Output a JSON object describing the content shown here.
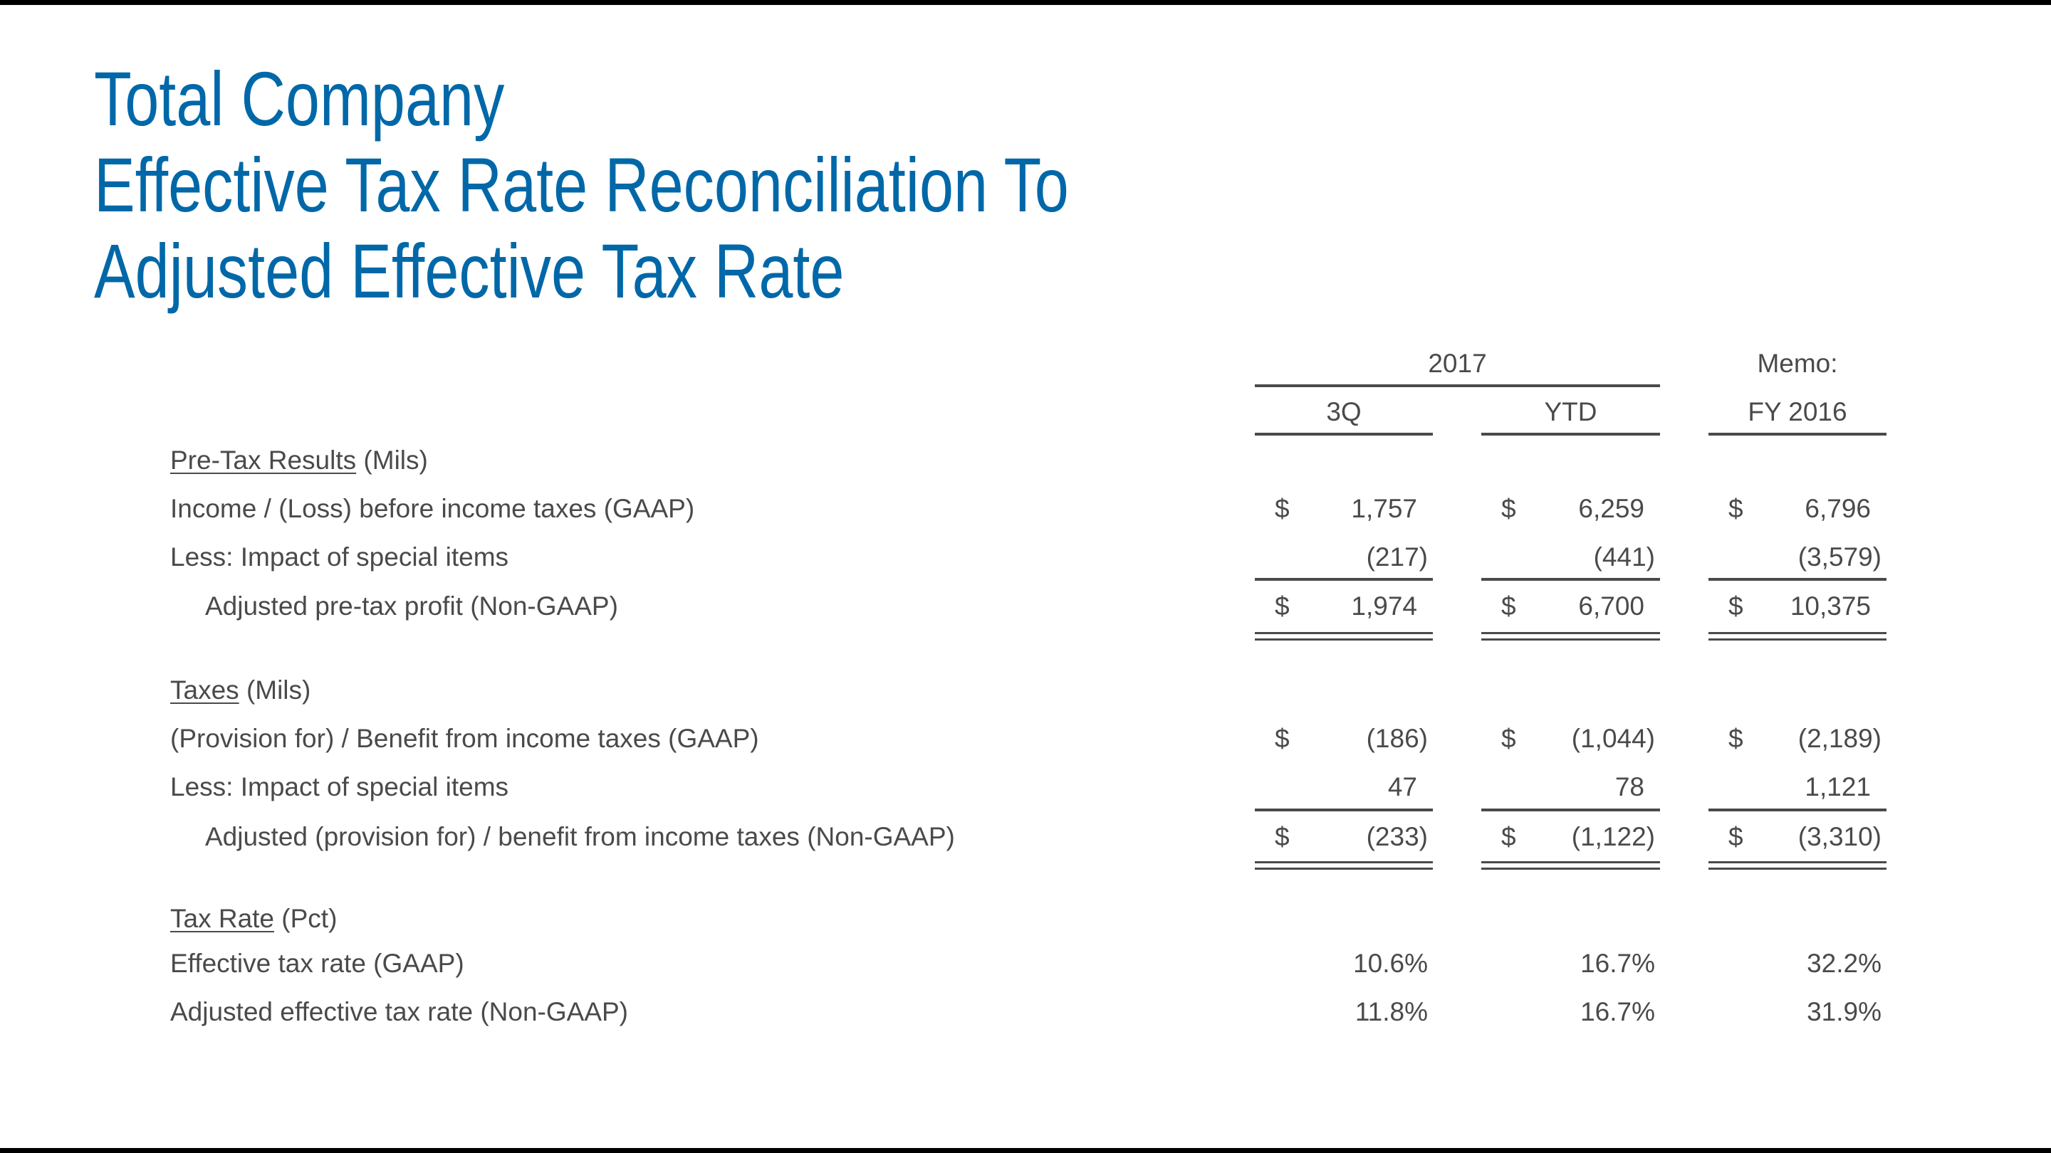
{
  "title": {
    "lines": [
      "Total Company",
      "Effective Tax Rate Reconciliation To",
      "Adjusted Effective Tax Rate"
    ],
    "color": "#0068a8"
  },
  "table": {
    "group_header": "2017",
    "memo_header": "Memo:",
    "columns": [
      "3Q",
      "YTD",
      "FY 2016"
    ],
    "sections": [
      {
        "heading": "Pre-Tax Results",
        "unit": "(Mils)",
        "rows": [
          {
            "label": "Income / (Loss) before income taxes (GAAP)",
            "dollar": "$",
            "values": [
              "1,757",
              "6,259",
              "6,796"
            ]
          },
          {
            "label": "Less:  Impact of special items",
            "dollar": "",
            "values": [
              "(217)",
              "(441)",
              "(3,579)"
            ]
          },
          {
            "label": "Adjusted pre-tax profit (Non-GAAP)",
            "dollar": "$",
            "values": [
              "1,974",
              "6,700",
              "10,375"
            ]
          }
        ]
      },
      {
        "heading": "Taxes",
        "unit": "(Mils)",
        "rows": [
          {
            "label": "(Provision for) / Benefit from income taxes (GAAP)",
            "dollar": "$",
            "values": [
              "(186)",
              "(1,044)",
              "(2,189)"
            ]
          },
          {
            "label": "Less:  Impact of special items",
            "dollar": "",
            "values": [
              "47",
              "78",
              "1,121"
            ]
          },
          {
            "label": "Adjusted (provision for) / benefit from income taxes (Non-GAAP)",
            "dollar": "$",
            "values": [
              "(233)",
              "(1,122)",
              "(3,310)"
            ]
          }
        ]
      },
      {
        "heading": "Tax Rate",
        "unit": "(Pct)",
        "rows": [
          {
            "label": "Effective tax rate (GAAP)",
            "dollar": "",
            "values": [
              "10.6%",
              "16.7%",
              "32.2%"
            ]
          },
          {
            "label": "Adjusted effective tax rate (Non-GAAP)",
            "dollar": "",
            "values": [
              "11.8%",
              "16.7%",
              "31.9%"
            ]
          }
        ]
      }
    ]
  }
}
